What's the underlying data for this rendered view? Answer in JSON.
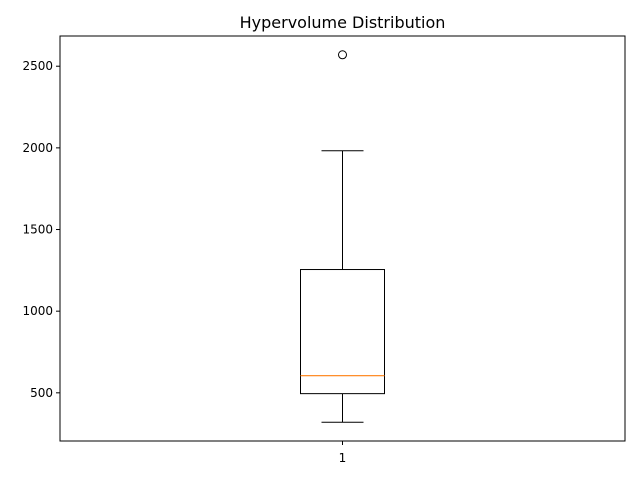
{
  "chart_data": {
    "type": "box",
    "title": "Hypervolume Distribution",
    "xlabel": "",
    "ylabel": "",
    "categories": [
      "1"
    ],
    "ylim": [
      205,
      2685
    ],
    "yticks": [
      500,
      1000,
      1500,
      2000,
      2500
    ],
    "grid": false,
    "boxes": [
      {
        "label": "1",
        "whisker_low": 320,
        "q1": 495,
        "median": 605,
        "q3": 1255,
        "whisker_high": 1982,
        "outliers": [
          2570
        ]
      }
    ],
    "colors": {
      "box": "#000000",
      "median": "#ff7f0e",
      "outlier": "#000000",
      "axes": "#000000"
    }
  }
}
